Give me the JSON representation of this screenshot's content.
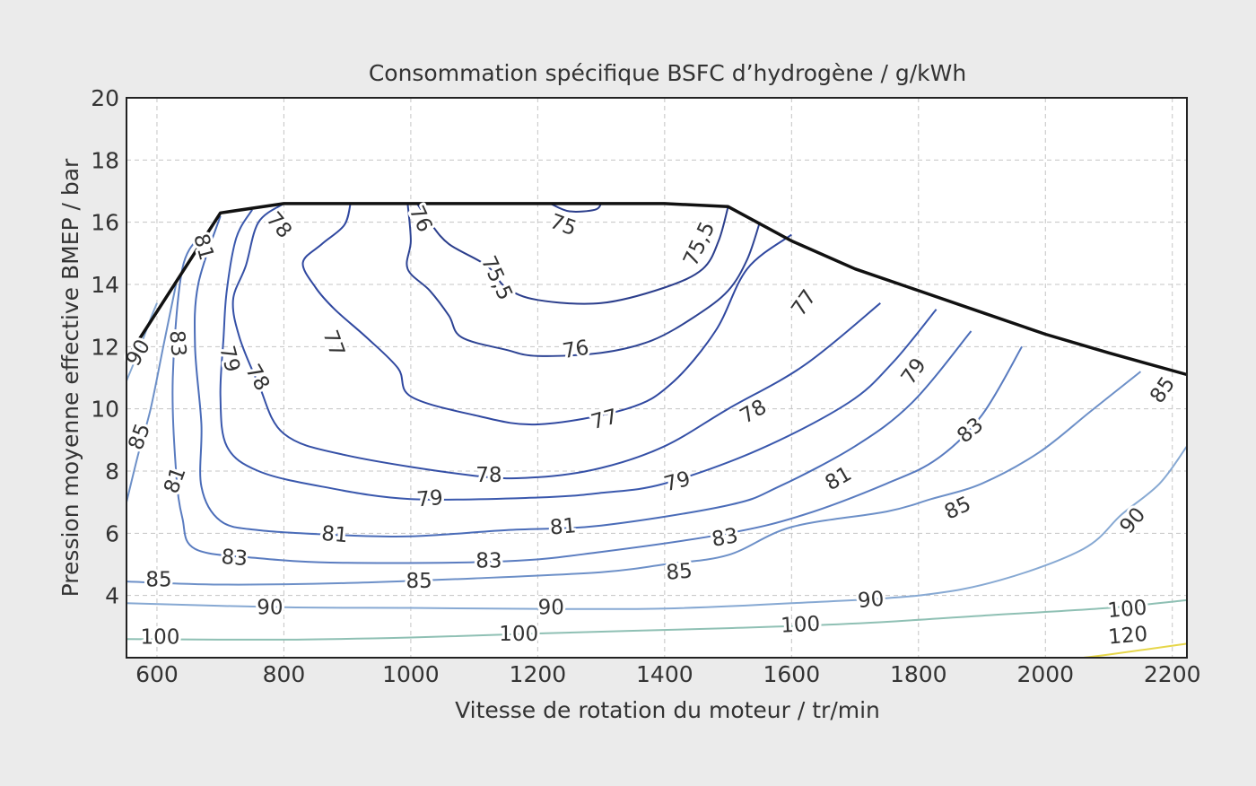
{
  "chart_data": {
    "type": "contour",
    "title": "Consommation spécifique BSFC d’hydrogène / g/kWh",
    "xlabel": "Vitesse de rotation du moteur / tr/min",
    "ylabel": "Pression moyenne effective BMEP / bar",
    "xlim": [
      552,
      2223
    ],
    "ylim": [
      2,
      20
    ],
    "x_ticks": [
      600,
      800,
      1000,
      1200,
      1400,
      1600,
      1800,
      2000,
      2200
    ],
    "y_ticks": [
      4,
      6,
      8,
      10,
      12,
      14,
      16,
      18,
      20
    ],
    "x_tick_labels": [
      "600",
      "800",
      "1000",
      "1200",
      "1400",
      "1600",
      "1800",
      "2000",
      "2200"
    ],
    "y_tick_labels": [
      "4",
      "6",
      "8",
      "10",
      "12",
      "14",
      "16",
      "18",
      "20"
    ],
    "grid": true,
    "full_load_curve": [
      [
        552,
        11.6
      ],
      [
        700,
        16.3
      ],
      [
        800,
        16.6
      ],
      [
        1400,
        16.6
      ],
      [
        1500,
        16.5
      ],
      [
        1600,
        15.4
      ],
      [
        1700,
        14.5
      ],
      [
        1800,
        13.8
      ],
      [
        1900,
        13.1
      ],
      [
        2000,
        12.4
      ],
      [
        2100,
        11.8
      ],
      [
        2223,
        11.1
      ]
    ],
    "contours": [
      {
        "level": 75,
        "label": "75",
        "color": "#2b3e8c",
        "points": [
          [
            1220,
            16.6
          ],
          [
            1250,
            16.35
          ],
          [
            1290,
            16.4
          ],
          [
            1300,
            16.6
          ]
        ],
        "labels": [
          {
            "text": "75",
            "x": 1240,
            "y": 15.9,
            "angle": 20
          }
        ]
      },
      {
        "level": 75.5,
        "label": "75,5",
        "color": "#2b3e8c",
        "points": [
          [
            1500,
            16.5
          ],
          [
            1485,
            15.4
          ],
          [
            1460,
            14.5
          ],
          [
            1400,
            13.9
          ],
          [
            1300,
            13.4
          ],
          [
            1200,
            13.5
          ],
          [
            1150,
            13.9
          ],
          [
            1120,
            14.6
          ],
          [
            1060,
            15.3
          ],
          [
            1030,
            16.0
          ],
          [
            1010,
            16.6
          ]
        ],
        "labels": [
          {
            "text": "75,5",
            "x": 1455,
            "y": 15.3,
            "angle": -65
          },
          {
            "text": "75,5",
            "x": 1135,
            "y": 14.2,
            "angle": 65
          }
        ]
      },
      {
        "level": 76,
        "label": "76",
        "color": "#2e4494",
        "points": [
          [
            1550,
            16.0
          ],
          [
            1530,
            14.8
          ],
          [
            1500,
            13.8
          ],
          [
            1450,
            13.0
          ],
          [
            1380,
            12.2
          ],
          [
            1300,
            11.8
          ],
          [
            1200,
            11.7
          ],
          [
            1150,
            11.9
          ],
          [
            1080,
            12.3
          ],
          [
            1060,
            13.0
          ],
          [
            1030,
            13.8
          ],
          [
            995,
            14.5
          ],
          [
            1000,
            15.4
          ],
          [
            995,
            16.6
          ]
        ],
        "labels": [
          {
            "text": "76",
            "x": 1260,
            "y": 11.9,
            "angle": -10
          },
          {
            "text": "76",
            "x": 1015,
            "y": 16.1,
            "angle": 65
          }
        ]
      },
      {
        "level": 77,
        "label": "77",
        "color": "#3048a0",
        "points": [
          [
            1600,
            15.6
          ],
          [
            1530,
            14.5
          ],
          [
            1480,
            12.5
          ],
          [
            1410,
            10.8
          ],
          [
            1340,
            10.0
          ],
          [
            1200,
            9.5
          ],
          [
            1100,
            9.8
          ],
          [
            1000,
            10.4
          ],
          [
            980,
            11.3
          ],
          [
            930,
            12.3
          ],
          [
            880,
            13.2
          ],
          [
            850,
            13.9
          ],
          [
            830,
            14.7
          ],
          [
            860,
            15.3
          ],
          [
            895,
            15.9
          ],
          [
            905,
            16.6
          ]
        ],
        "labels": [
          {
            "text": "77",
            "x": 1305,
            "y": 9.65,
            "angle": -15
          },
          {
            "text": "77",
            "x": 1620,
            "y": 13.4,
            "angle": -55
          },
          {
            "text": "77",
            "x": 878,
            "y": 12.1,
            "angle": 70
          }
        ]
      },
      {
        "level": 78,
        "label": "78",
        "color": "#3550a6",
        "points": [
          [
            1740,
            13.4
          ],
          [
            1620,
            11.4
          ],
          [
            1500,
            10.0
          ],
          [
            1400,
            8.8
          ],
          [
            1300,
            8.1
          ],
          [
            1200,
            7.8
          ],
          [
            1100,
            7.85
          ],
          [
            900,
            8.5
          ],
          [
            800,
            9.2
          ],
          [
            760,
            10.8
          ],
          [
            730,
            12.3
          ],
          [
            720,
            13.5
          ],
          [
            740,
            14.6
          ],
          [
            760,
            16.0
          ],
          [
            800,
            16.6
          ]
        ],
        "labels": [
          {
            "text": "78",
            "x": 1123,
            "y": 7.85,
            "angle": 0
          },
          {
            "text": "78",
            "x": 1540,
            "y": 9.9,
            "angle": -30
          },
          {
            "text": "78",
            "x": 758,
            "y": 11.0,
            "angle": 60
          },
          {
            "text": "78",
            "x": 792,
            "y": 15.9,
            "angle": 50
          }
        ]
      },
      {
        "level": 79,
        "label": "79",
        "color": "#3a58ad",
        "points": [
          [
            1828,
            13.2
          ],
          [
            1760,
            11.5
          ],
          [
            1690,
            10.2
          ],
          [
            1550,
            8.7
          ],
          [
            1400,
            7.6
          ],
          [
            1300,
            7.3
          ],
          [
            1200,
            7.15
          ],
          [
            1000,
            7.1
          ],
          [
            860,
            7.5
          ],
          [
            760,
            8.0
          ],
          [
            710,
            8.8
          ],
          [
            700,
            10.4
          ],
          [
            705,
            12.3
          ],
          [
            710,
            13.8
          ],
          [
            725,
            15.5
          ],
          [
            750,
            16.4
          ]
        ],
        "labels": [
          {
            "text": "79",
            "x": 1030,
            "y": 7.1,
            "angle": -5
          },
          {
            "text": "79",
            "x": 1420,
            "y": 7.65,
            "angle": -15
          },
          {
            "text": "79",
            "x": 1793,
            "y": 11.2,
            "angle": -55
          },
          {
            "text": "79",
            "x": 714,
            "y": 11.6,
            "angle": 75
          }
        ]
      },
      {
        "level": 81,
        "label": "81",
        "color": "#4a6cb8",
        "points": [
          [
            1883,
            12.5
          ],
          [
            1790,
            10.2
          ],
          [
            1700,
            8.8
          ],
          [
            1580,
            7.5
          ],
          [
            1500,
            6.9
          ],
          [
            1300,
            6.25
          ],
          [
            1150,
            6.1
          ],
          [
            1000,
            5.9
          ],
          [
            880,
            5.95
          ],
          [
            760,
            6.1
          ],
          [
            700,
            6.4
          ],
          [
            670,
            7.5
          ],
          [
            670,
            9.5
          ],
          [
            660,
            12.0
          ],
          [
            665,
            14.0
          ],
          [
            700,
            16.2
          ]
        ],
        "labels": [
          {
            "text": "81",
            "x": 880,
            "y": 5.95,
            "angle": 5
          },
          {
            "text": "81",
            "x": 1240,
            "y": 6.2,
            "angle": -5
          },
          {
            "text": "81",
            "x": 1674,
            "y": 7.75,
            "angle": -30
          },
          {
            "text": "81",
            "x": 673,
            "y": 15.2,
            "angle": 75
          },
          {
            "text": "81",
            "x": 629,
            "y": 7.7,
            "angle": -70
          }
        ]
      },
      {
        "level": 83,
        "label": "83",
        "color": "#5a7cc0",
        "points": [
          [
            1963,
            12.0
          ],
          [
            1900,
            9.8
          ],
          [
            1830,
            8.4
          ],
          [
            1750,
            7.6
          ],
          [
            1620,
            6.6
          ],
          [
            1500,
            6.0
          ],
          [
            1300,
            5.4
          ],
          [
            1150,
            5.1
          ],
          [
            900,
            5.05
          ],
          [
            760,
            5.2
          ],
          [
            660,
            5.5
          ],
          [
            640,
            6.5
          ],
          [
            630,
            8.0
          ],
          [
            625,
            11.0
          ],
          [
            640,
            14.5
          ],
          [
            670,
            15.6
          ]
        ],
        "labels": [
          {
            "text": "83",
            "x": 722,
            "y": 5.2,
            "angle": 5
          },
          {
            "text": "83",
            "x": 1123,
            "y": 5.1,
            "angle": 0
          },
          {
            "text": "83",
            "x": 1495,
            "y": 5.85,
            "angle": -10
          },
          {
            "text": "83",
            "x": 1882,
            "y": 9.3,
            "angle": -40
          },
          {
            "text": "83",
            "x": 632,
            "y": 12.1,
            "angle": 85
          }
        ]
      },
      {
        "level": 85,
        "label": "85",
        "color": "#6d90c8",
        "points": [
          [
            2150,
            11.2
          ],
          [
            2070,
            9.9
          ],
          [
            1990,
            8.6
          ],
          [
            1900,
            7.6
          ],
          [
            1820,
            7.1
          ],
          [
            1750,
            6.7
          ],
          [
            1600,
            6.2
          ],
          [
            1500,
            5.3
          ],
          [
            1400,
            5.0
          ],
          [
            1300,
            4.75
          ],
          [
            1100,
            4.55
          ],
          [
            900,
            4.4
          ],
          [
            700,
            4.35
          ],
          [
            552,
            4.45
          ]
        ],
        "labels": [
          {
            "text": "85",
            "x": 603,
            "y": 4.5,
            "angle": 0
          },
          {
            "text": "85",
            "x": 1013,
            "y": 4.45,
            "angle": 0
          },
          {
            "text": "85",
            "x": 1423,
            "y": 4.75,
            "angle": -5
          },
          {
            "text": "85",
            "x": 1862,
            "y": 6.8,
            "angle": -25
          },
          {
            "text": "85",
            "x": 2185,
            "y": 10.6,
            "angle": -55
          }
        ]
      },
      {
        "level": 85,
        "label": "85",
        "color": "#6d90c8",
        "points": [
          [
            552,
            7.0
          ],
          [
            570,
            8.5
          ],
          [
            590,
            10.0
          ],
          [
            610,
            12.0
          ],
          [
            630,
            14.0
          ]
        ],
        "labels": [
          {
            "text": "85",
            "x": 573,
            "y": 9.1,
            "angle": -70
          }
        ]
      },
      {
        "level": 90,
        "label": "90",
        "color": "#87a9d3",
        "points": [
          [
            2223,
            8.8
          ],
          [
            2180,
            7.6
          ],
          [
            2120,
            6.6
          ],
          [
            2060,
            5.5
          ],
          [
            1930,
            4.5
          ],
          [
            1800,
            4.0
          ],
          [
            1600,
            3.75
          ],
          [
            1400,
            3.58
          ],
          [
            1200,
            3.57
          ],
          [
            1000,
            3.6
          ],
          [
            800,
            3.62
          ],
          [
            552,
            3.75
          ]
        ],
        "labels": [
          {
            "text": "90",
            "x": 778,
            "y": 3.6,
            "angle": 0
          },
          {
            "text": "90",
            "x": 1221,
            "y": 3.6,
            "angle": 0
          },
          {
            "text": "90",
            "x": 1725,
            "y": 3.85,
            "angle": -5
          },
          {
            "text": "90",
            "x": 2138,
            "y": 6.4,
            "angle": -50
          }
        ]
      },
      {
        "level": 90,
        "label": "90",
        "color": "#87a9d3",
        "points": [
          [
            552,
            10.9
          ],
          [
            570,
            11.8
          ],
          [
            590,
            12.9
          ],
          [
            600,
            13.4
          ]
        ],
        "labels": [
          {
            "text": "90",
            "x": 571,
            "y": 11.8,
            "angle": -60
          }
        ]
      },
      {
        "level": 100,
        "label": "100",
        "color": "#8fc0b4",
        "points": [
          [
            552,
            2.6
          ],
          [
            800,
            2.58
          ],
          [
            1000,
            2.65
          ],
          [
            1200,
            2.78
          ],
          [
            1500,
            2.95
          ],
          [
            1700,
            3.1
          ],
          [
            1900,
            3.35
          ],
          [
            2100,
            3.6
          ],
          [
            2223,
            3.85
          ]
        ],
        "labels": [
          {
            "text": "100",
            "x": 605,
            "y": 2.65,
            "angle": 0
          },
          {
            "text": "100",
            "x": 1170,
            "y": 2.75,
            "angle": 0
          },
          {
            "text": "100",
            "x": 1614,
            "y": 3.05,
            "angle": -3
          },
          {
            "text": "100",
            "x": 2129,
            "y": 3.55,
            "angle": -5
          }
        ]
      },
      {
        "level": 120,
        "label": "120",
        "color": "#e6d64a",
        "points": [
          [
            2060,
            2.0
          ],
          [
            2100,
            2.1
          ],
          [
            2223,
            2.45
          ]
        ],
        "labels": [
          {
            "text": "120",
            "x": 2130,
            "y": 2.7,
            "angle": -5
          }
        ]
      }
    ]
  }
}
